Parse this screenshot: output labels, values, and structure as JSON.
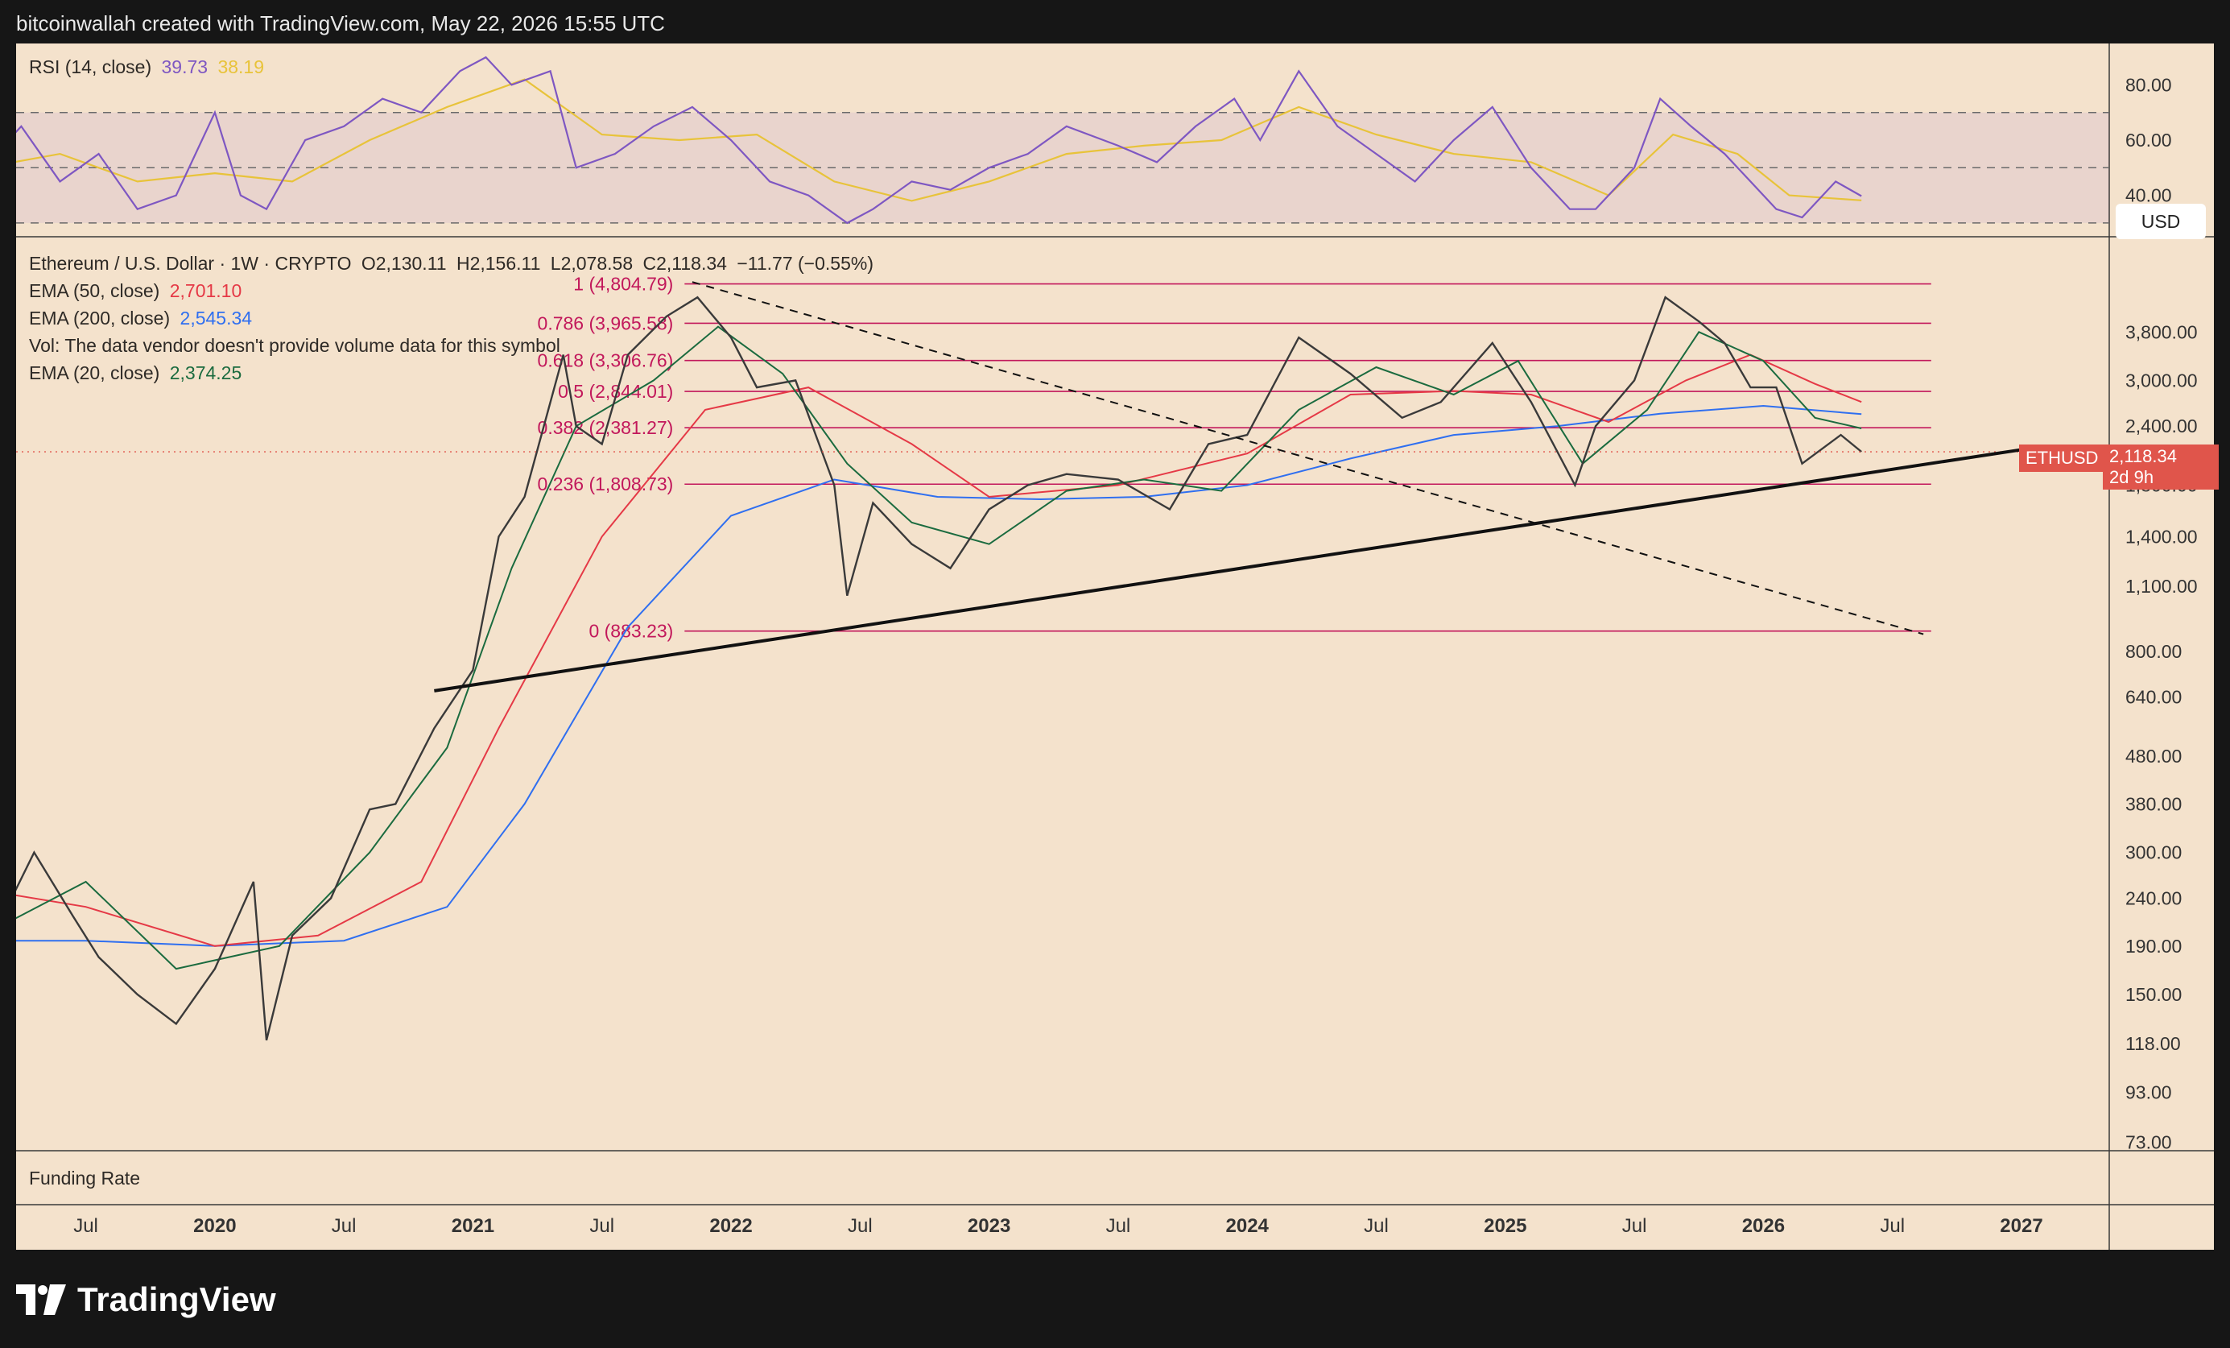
{
  "header": {
    "title": "bitcoinwallah created with TradingView.com, May 22, 2026 15:55 UTC"
  },
  "footer": {
    "brand": "TradingView"
  },
  "rsi_legend": {
    "label": "RSI (14, close)",
    "rsi_value": "39.73",
    "ma_value": "38.19",
    "rsi_color": "#7e57c2",
    "ma_color": "#e8c33a"
  },
  "main_legend": {
    "symbol": "Ethereum / U.S. Dollar · 1W · CRYPTO",
    "open": "O2,130.11",
    "high": "H2,156.11",
    "low": "L2,078.58",
    "close": "C2,118.34",
    "change": "−11.77 (−0.55%)",
    "ema50_label": "EMA (50, close)",
    "ema50_value": "2,701.10",
    "ema50_color": "#e53946",
    "ema200_label": "EMA (200, close)",
    "ema200_value": "2,545.34",
    "ema200_color": "#2f6ff0",
    "vol_note": "Vol: The data vendor doesn't provide volume data for this symbol",
    "ema20_label": "EMA (20, close)",
    "ema20_value": "2,374.25",
    "ema20_color": "#1b6b3f"
  },
  "currency_button": "USD",
  "price_tag": {
    "symbol": "ETHUSD",
    "price": "2,118.34",
    "countdown": "2d 9h"
  },
  "funding_pane": {
    "label": "Funding Rate"
  },
  "chart_data": {
    "type": "line",
    "title": "Ethereum / U.S. Dollar · 1W · CRYPTO",
    "y_scale": "log",
    "ylim": [
      70,
      6000
    ],
    "y_ticks": [
      73,
      93,
      118,
      150,
      190,
      240,
      300,
      380,
      480,
      640,
      800,
      1100,
      1400,
      1800,
      2400,
      3000,
      3800
    ],
    "y_tick_labels": [
      "73.00",
      "93.00",
      "118.00",
      "150.00",
      "190.00",
      "240.00",
      "300.00",
      "380.00",
      "480.00",
      "640.00",
      "800.00",
      "1,100.00",
      "1,400.00",
      "1,800.00",
      "2,400.00",
      "3,000.00",
      "3,800.00"
    ],
    "x_ticks": [
      {
        "label": "Jul",
        "t": 2019.5
      },
      {
        "label": "2020",
        "t": 2020.0
      },
      {
        "label": "Jul",
        "t": 2020.5
      },
      {
        "label": "2021",
        "t": 2021.0
      },
      {
        "label": "Jul",
        "t": 2021.5
      },
      {
        "label": "2022",
        "t": 2022.0
      },
      {
        "label": "Jul",
        "t": 2022.5
      },
      {
        "label": "2023",
        "t": 2023.0
      },
      {
        "label": "Jul",
        "t": 2023.5
      },
      {
        "label": "2024",
        "t": 2024.0
      },
      {
        "label": "Jul",
        "t": 2024.5
      },
      {
        "label": "2025",
        "t": 2025.0
      },
      {
        "label": "Jul",
        "t": 2025.5
      },
      {
        "label": "2026",
        "t": 2026.0
      },
      {
        "label": "Jul",
        "t": 2026.5
      },
      {
        "label": "2027",
        "t": 2027.0
      }
    ],
    "price": {
      "name": "ETHUSD",
      "t": [
        2019.1,
        2019.3,
        2019.45,
        2019.55,
        2019.7,
        2019.85,
        2020.0,
        2020.15,
        2020.2,
        2020.3,
        2020.45,
        2020.6,
        2020.7,
        2020.85,
        2021.0,
        2021.1,
        2021.2,
        2021.35,
        2021.4,
        2021.5,
        2021.6,
        2021.75,
        2021.87,
        2022.0,
        2022.1,
        2022.25,
        2022.4,
        2022.45,
        2022.55,
        2022.7,
        2022.85,
        2023.0,
        2023.15,
        2023.3,
        2023.5,
        2023.7,
        2023.85,
        2024.0,
        2024.2,
        2024.4,
        2024.6,
        2024.75,
        2024.95,
        2025.1,
        2025.27,
        2025.35,
        2025.5,
        2025.62,
        2025.75,
        2025.85,
        2025.95,
        2026.05,
        2026.15,
        2026.3,
        2026.38
      ],
      "close": [
        180,
        300,
        220,
        180,
        150,
        130,
        170,
        260,
        120,
        200,
        240,
        370,
        380,
        550,
        730,
        1400,
        1700,
        3400,
        2400,
        2200,
        3400,
        4100,
        4500,
        3700,
        2900,
        3000,
        1800,
        1050,
        1650,
        1350,
        1200,
        1600,
        1800,
        1900,
        1850,
        1600,
        2200,
        2300,
        3700,
        3100,
        2500,
        2700,
        3600,
        2700,
        1800,
        2400,
        3000,
        4500,
        4000,
        3600,
        2900,
        2900,
        2000,
        2300,
        2118.34
      ]
    },
    "ema20": {
      "name": "EMA (20, close)",
      "value": 2374.25,
      "t": [
        2019.1,
        2019.5,
        2019.85,
        2020.25,
        2020.6,
        2020.9,
        2021.15,
        2021.4,
        2021.7,
        2021.95,
        2022.2,
        2022.45,
        2022.7,
        2023.0,
        2023.3,
        2023.6,
        2023.9,
        2024.2,
        2024.5,
        2024.8,
        2025.05,
        2025.3,
        2025.55,
        2025.75,
        2026.0,
        2026.2,
        2026.38
      ],
      "values": [
        200,
        260,
        170,
        190,
        300,
        500,
        1200,
        2400,
        3000,
        3900,
        3100,
        2000,
        1500,
        1350,
        1750,
        1850,
        1750,
        2600,
        3200,
        2800,
        3300,
        2000,
        2600,
        3800,
        3300,
        2500,
        2374.25
      ]
    },
    "ema50": {
      "name": "EMA (50, close)",
      "value": 2701.1,
      "t": [
        2019.1,
        2019.5,
        2020.0,
        2020.4,
        2020.8,
        2021.1,
        2021.5,
        2021.9,
        2022.3,
        2022.7,
        2023.0,
        2023.5,
        2024.0,
        2024.4,
        2024.8,
        2025.1,
        2025.4,
        2025.7,
        2025.95,
        2026.2,
        2026.38
      ],
      "values": [
        250,
        230,
        190,
        200,
        260,
        550,
        1400,
        2600,
        2900,
        2200,
        1700,
        1800,
        2100,
        2800,
        2850,
        2800,
        2450,
        3000,
        3400,
        2950,
        2701.1
      ]
    },
    "ema200": {
      "name": "EMA (200, close)",
      "value": 2545.34,
      "t": [
        2019.1,
        2019.5,
        2020.0,
        2020.5,
        2020.9,
        2021.2,
        2021.6,
        2022.0,
        2022.4,
        2022.8,
        2023.2,
        2023.6,
        2024.0,
        2024.4,
        2024.8,
        2025.2,
        2025.6,
        2026.0,
        2026.38
      ],
      "values": [
        195,
        195,
        190,
        195,
        230,
        380,
        900,
        1550,
        1850,
        1700,
        1680,
        1700,
        1800,
        2050,
        2300,
        2400,
        2550,
        2650,
        2545.34
      ]
    },
    "fibonacci": [
      {
        "ratio": "1",
        "label": "1 (4,804.79)",
        "price": 4804.79
      },
      {
        "ratio": "0.786",
        "label": "0.786 (3,965.58)",
        "price": 3965.58
      },
      {
        "ratio": "0.618",
        "label": "0.618 (3,306.76)",
        "price": 3306.76
      },
      {
        "ratio": "0.5",
        "label": "0.5 (2,844.01)",
        "price": 2844.01
      },
      {
        "ratio": "0.382",
        "label": "0.382 (2,381.27)",
        "price": 2381.27
      },
      {
        "ratio": "0.236",
        "label": "0.236 (1,808.73)",
        "price": 1808.73
      },
      {
        "ratio": "0",
        "label": "0 (883.23)",
        "price": 883.23
      }
    ],
    "trendlines": {
      "support": {
        "from": {
          "t": 2020.85,
          "price": 660
        },
        "to": {
          "t": 2027.0,
          "price": 2140
        }
      },
      "resistance_dashed": {
        "from": {
          "t": 2021.85,
          "price": 4850
        },
        "to": {
          "t": 2026.62,
          "price": 870
        }
      }
    },
    "rsi": {
      "name": "RSI (14, close)",
      "ylim": [
        25,
        95
      ],
      "y_ticks": [
        40,
        60,
        80
      ],
      "y_tick_labels": [
        "40.00",
        "60.00",
        "80.00"
      ],
      "bands": [
        30,
        50,
        70
      ],
      "t": [
        2019.1,
        2019.25,
        2019.4,
        2019.55,
        2019.7,
        2019.85,
        2020.0,
        2020.1,
        2020.2,
        2020.35,
        2020.5,
        2020.65,
        2020.8,
        2020.95,
        2021.05,
        2021.15,
        2021.3,
        2021.4,
        2021.55,
        2021.7,
        2021.85,
        2022.0,
        2022.15,
        2022.3,
        2022.45,
        2022.55,
        2022.7,
        2022.85,
        2023.0,
        2023.15,
        2023.3,
        2023.5,
        2023.65,
        2023.8,
        2023.95,
        2024.05,
        2024.2,
        2024.35,
        2024.5,
        2024.65,
        2024.8,
        2024.95,
        2025.1,
        2025.25,
        2025.35,
        2025.5,
        2025.6,
        2025.72,
        2025.85,
        2025.95,
        2026.05,
        2026.15,
        2026.28,
        2026.38
      ],
      "values": [
        50,
        65,
        45,
        55,
        35,
        40,
        70,
        40,
        35,
        60,
        65,
        75,
        70,
        85,
        90,
        80,
        85,
        50,
        55,
        65,
        72,
        60,
        45,
        40,
        30,
        35,
        45,
        42,
        50,
        55,
        65,
        58,
        52,
        65,
        75,
        60,
        85,
        65,
        55,
        45,
        60,
        72,
        50,
        35,
        35,
        50,
        75,
        65,
        55,
        45,
        35,
        32,
        45,
        39.73
      ],
      "ma_t": [
        2019.1,
        2019.4,
        2019.7,
        2020.0,
        2020.3,
        2020.6,
        2020.9,
        2021.2,
        2021.5,
        2021.8,
        2022.1,
        2022.4,
        2022.7,
        2023.0,
        2023.3,
        2023.6,
        2023.9,
        2024.2,
        2024.5,
        2024.8,
        2025.1,
        2025.4,
        2025.65,
        2025.9,
        2026.1,
        2026.38
      ],
      "ma_values": [
        50,
        55,
        45,
        48,
        45,
        60,
        72,
        82,
        62,
        60,
        62,
        45,
        38,
        45,
        55,
        58,
        60,
        72,
        62,
        55,
        52,
        40,
        62,
        55,
        40,
        38.19
      ]
    }
  }
}
